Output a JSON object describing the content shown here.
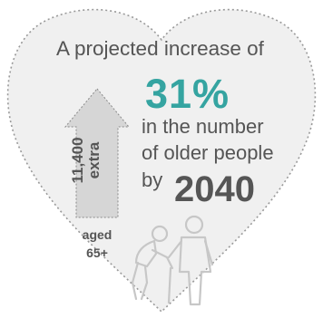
{
  "headline": {
    "prefix": "A projected increase of",
    "percentage": "31%",
    "line_a": "in the number",
    "line_b": "of older people",
    "by": "by",
    "year": "2040"
  },
  "arrow": {
    "number": "11,400",
    "extra": "extra"
  },
  "age_label": {
    "line1": "aged",
    "line2": "65+"
  },
  "colors": {
    "accent": "#35a4a1",
    "text": "#555555",
    "heart_fill": "#f0f0f0",
    "heart_border": "#999999"
  },
  "icons": {
    "arrow": "up-arrow-icon",
    "people": "older-people-icon"
  }
}
